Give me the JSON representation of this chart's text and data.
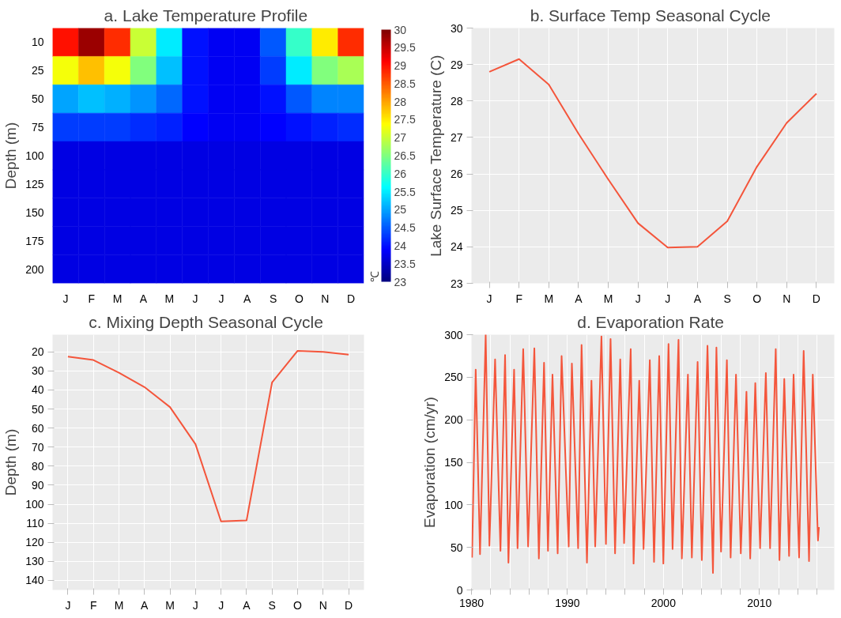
{
  "chart_data": [
    {
      "type": "heatmap",
      "title": "a.  Lake Temperature Profile",
      "ylabel": "Depth (m)",
      "clabel": "℃",
      "categories": [
        "J",
        "F",
        "M",
        "A",
        "M",
        "J",
        "J",
        "A",
        "S",
        "O",
        "N",
        "D"
      ],
      "y_categories": [
        "10",
        "25",
        "50",
        "75",
        "100",
        "125",
        "150",
        "175",
        "200"
      ],
      "cells": [
        [
          29,
          29.8,
          28.8,
          27,
          25.5,
          24,
          23.8,
          23.8,
          24.5,
          26,
          27.5,
          28.8
        ],
        [
          27.3,
          27.8,
          27.3,
          26.5,
          25.2,
          24,
          23.8,
          23.8,
          24.3,
          25.5,
          26.5,
          26.8
        ],
        [
          25,
          25.2,
          25.1,
          24.9,
          24.6,
          24,
          23.8,
          23.8,
          24,
          24.5,
          24.8,
          24.8
        ],
        [
          24.3,
          24.3,
          24.3,
          24.2,
          24.1,
          23.9,
          23.8,
          23.8,
          23.9,
          24,
          24.1,
          24.2
        ],
        [
          23.7,
          23.7,
          23.7,
          23.7,
          23.7,
          23.7,
          23.7,
          23.7,
          23.7,
          23.7,
          23.7,
          23.7
        ],
        [
          23.7,
          23.7,
          23.7,
          23.7,
          23.7,
          23.7,
          23.7,
          23.7,
          23.7,
          23.7,
          23.7,
          23.7
        ],
        [
          23.7,
          23.7,
          23.7,
          23.7,
          23.7,
          23.7,
          23.7,
          23.7,
          23.7,
          23.7,
          23.7,
          23.7
        ],
        [
          23.7,
          23.7,
          23.7,
          23.7,
          23.7,
          23.7,
          23.7,
          23.7,
          23.7,
          23.7,
          23.7,
          23.7
        ],
        [
          23.7,
          23.7,
          23.7,
          23.7,
          23.7,
          23.7,
          23.7,
          23.7,
          23.7,
          23.7,
          23.7,
          23.7
        ]
      ],
      "clim": [
        23,
        30
      ],
      "cticks": [
        23,
        23.5,
        24,
        24.5,
        25,
        25.5,
        26,
        26.5,
        27,
        27.5,
        28,
        28.5,
        29,
        29.5,
        30
      ]
    },
    {
      "type": "line",
      "title": "b.  Surface Temp Seasonal Cycle",
      "ylabel": "Lake Surface Temperature (C)",
      "categories": [
        "J",
        "F",
        "M",
        "A",
        "M",
        "J",
        "J",
        "A",
        "S",
        "O",
        "N",
        "D"
      ],
      "series": [
        {
          "color": "#f4553b",
          "values": [
            28.8,
            29.15,
            28.45,
            27.1,
            25.85,
            24.65,
            23.98,
            24.0,
            24.7,
            26.2,
            27.4,
            28.2
          ]
        }
      ],
      "ylim": [
        23,
        30
      ],
      "yticks": [
        23,
        24,
        25,
        26,
        27,
        28,
        29,
        30
      ],
      "grid": true
    },
    {
      "type": "line",
      "title": "c.  Mixing Depth Seasonal Cycle",
      "ylabel": "Depth (m)",
      "categories": [
        "J",
        "F",
        "M",
        "A",
        "M",
        "J",
        "J",
        "A",
        "S",
        "O",
        "N",
        "D"
      ],
      "series": [
        {
          "color": "#f4553b",
          "values": [
            22.5,
            24.3,
            31,
            38.5,
            49,
            68.5,
            109,
            108.5,
            36,
            19.5,
            20,
            21.5
          ]
        }
      ],
      "ylim": [
        145,
        11
      ],
      "yticks": [
        20,
        30,
        40,
        50,
        60,
        70,
        80,
        90,
        100,
        110,
        120,
        130,
        140
      ],
      "grid": true
    },
    {
      "type": "line",
      "title": "d.  Evaporation Rate",
      "ylabel": "Evaporation (cm/yr)",
      "x": [
        1980.06,
        1980.44,
        1980.89,
        1981.48,
        1981.87,
        1982.46,
        1983.02,
        1983.5,
        1983.85,
        1984.44,
        1984.8,
        1985.39,
        1985.9,
        1986.55,
        1987.02,
        1987.56,
        1987.97,
        1988.44,
        1988.98,
        1989.39,
        1990.13,
        1990.46,
        1991.11,
        1991.47,
        1992.03,
        1992.5,
        1992.89,
        1993.54,
        1994.01,
        1994.49,
        1994.96,
        1995.5,
        1995.9,
        1996.59,
        1996.89,
        1997.48,
        1997.93,
        1998.58,
        1999.02,
        1999.56,
        1999.99,
        2000.53,
        2000.95,
        2001.57,
        2001.92,
        2002.55,
        2002.96,
        2003.56,
        2004.0,
        2004.59,
        2005.16,
        2005.52,
        2006.0,
        2006.61,
        2007.0,
        2007.56,
        2008.06,
        2008.65,
        2009.04,
        2009.57,
        2010.07,
        2010.67,
        2011.11,
        2011.7,
        2012.09,
        2012.59,
        2013.09,
        2013.56,
        2014.13,
        2014.61,
        2015.17,
        2015.56,
        2016.1,
        2016.2
      ],
      "series": [
        {
          "color": "#f4553b",
          "values": [
            38,
            259,
            42,
            300,
            52,
            271,
            46,
            276,
            32,
            259,
            49,
            283,
            51,
            284,
            37,
            267,
            46,
            253,
            43,
            275,
            51,
            266,
            49,
            288,
            32,
            246,
            51,
            298,
            54,
            295,
            43,
            271,
            55,
            283,
            31,
            246,
            48,
            270,
            33,
            275,
            31,
            289,
            48,
            294,
            37,
            253,
            38,
            268,
            35,
            287,
            20,
            285,
            45,
            270,
            38,
            253,
            43,
            233,
            37,
            243,
            49,
            255,
            49,
            283,
            35,
            248,
            40,
            253,
            38,
            281,
            34,
            253,
            58,
            74
          ]
        }
      ],
      "xlim": [
        1980,
        2017.8
      ],
      "xticks": [
        1980,
        {
          "value": 1982,
          "label": null
        },
        {
          "value": 1984,
          "label": null
        },
        {
          "value": 1986,
          "label": null
        },
        {
          "value": 1988,
          "label": null
        },
        1990,
        {
          "value": 1992,
          "label": null
        },
        {
          "value": 1994,
          "label": null
        },
        {
          "value": 1996,
          "label": null
        },
        {
          "value": 1998,
          "label": null
        },
        2000,
        {
          "value": 2002,
          "label": null
        },
        {
          "value": 2004,
          "label": null
        },
        {
          "value": 2006,
          "label": null
        },
        {
          "value": 2008,
          "label": null
        },
        2010,
        {
          "value": 2012,
          "label": null
        },
        {
          "value": 2014,
          "label": null
        },
        {
          "value": 2016,
          "label": null
        }
      ],
      "ylim": [
        0,
        300
      ],
      "yticks": [
        0,
        50,
        100,
        150,
        200,
        250,
        300
      ],
      "grid": true
    }
  ]
}
